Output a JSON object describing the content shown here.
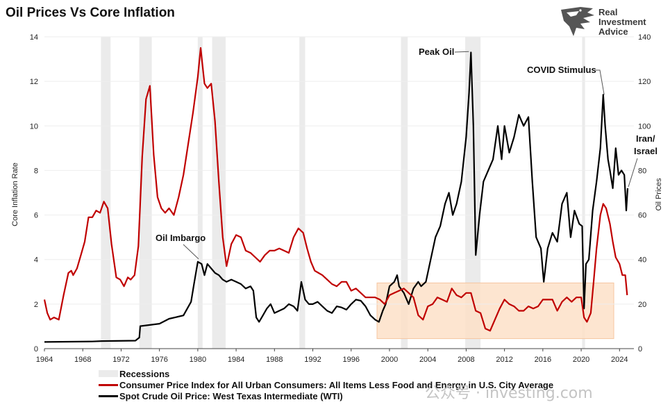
{
  "chart_data": {
    "type": "line",
    "title": "Oil Prices Vs Core Inflation",
    "brand": "Real Investment Advice",
    "watermark": "公众号 · investing.com",
    "ylabel_left": "Core Inflation Rate",
    "ylabel_right": "Oil Prices",
    "xlim": [
      1964,
      2025.5
    ],
    "ylim_left": [
      0,
      14
    ],
    "ylim_right": [
      0,
      140
    ],
    "x_ticks": [
      1964,
      1968,
      1972,
      1976,
      1980,
      1984,
      1988,
      1992,
      1996,
      2000,
      2004,
      2008,
      2012,
      2016,
      2020,
      2024
    ],
    "y_left_ticks": [
      0,
      2,
      4,
      6,
      8,
      10,
      12,
      14
    ],
    "y_right_ticks": [
      0,
      20,
      40,
      60,
      80,
      100,
      120,
      140
    ],
    "recessions": [
      [
        1969.9,
        1970.9
      ],
      [
        1973.9,
        1975.2
      ],
      [
        1980.0,
        1980.5
      ],
      [
        1981.5,
        1982.9
      ],
      [
        1990.6,
        1991.2
      ],
      [
        2001.2,
        2001.9
      ],
      [
        2007.9,
        2009.5
      ],
      [
        2020.1,
        2020.4
      ]
    ],
    "highlight_box": {
      "x0": 1998.7,
      "x1": 2023.4,
      "y0": 0.45,
      "y1": 2.95,
      "axis": "left",
      "color": "#fde0c8"
    },
    "annotations": [
      {
        "text": "Oil Imbargo",
        "x": 1980.3,
        "y": 39,
        "axis": "right"
      },
      {
        "text": "Peak Oil",
        "x": 2008.5,
        "y": 134,
        "axis": "right"
      },
      {
        "text": "COVID Stimulus",
        "x": 2022.4,
        "y": 114,
        "axis": "right"
      },
      {
        "text": "Iran/",
        "x": 2024.8,
        "y": 82,
        "axis": "right"
      },
      {
        "text": "Israel",
        "x": 2024.8,
        "y": 82,
        "axis": "right"
      }
    ],
    "legend": [
      "Recessions",
      "Consumer Price Index for All Urban Consumers: All Items Less Food and Energy in U.S. City Average",
      "Spot Crude Oil Price: West Texas Intermediate (WTI)"
    ],
    "series": [
      {
        "name": "Consumer Price Index for All Urban Consumers: All Items Less Food and Energy in U.S. City Average",
        "axis": "left",
        "color": "#c00000",
        "x": [
          1964.0,
          1964.3,
          1964.6,
          1965.0,
          1965.5,
          1966.0,
          1966.5,
          1966.8,
          1967.0,
          1967.4,
          1967.8,
          1968.2,
          1968.6,
          1969.0,
          1969.4,
          1969.8,
          1970.2,
          1970.6,
          1971.0,
          1971.5,
          1971.9,
          1972.3,
          1972.7,
          1973.0,
          1973.4,
          1973.8,
          1974.2,
          1974.6,
          1975.0,
          1975.4,
          1975.8,
          1976.2,
          1976.6,
          1977.0,
          1977.5,
          1978.0,
          1978.5,
          1979.0,
          1979.5,
          1980.0,
          1980.3,
          1980.7,
          1981.0,
          1981.4,
          1981.8,
          1982.2,
          1982.6,
          1983.0,
          1983.5,
          1984.0,
          1984.5,
          1985.0,
          1985.5,
          1986.0,
          1986.5,
          1987.0,
          1987.5,
          1988.0,
          1988.5,
          1989.0,
          1989.5,
          1990.0,
          1990.5,
          1991.0,
          1991.4,
          1991.8,
          1992.2,
          1992.6,
          1993.0,
          1993.5,
          1994.0,
          1994.5,
          1995.0,
          1995.5,
          1996.0,
          1996.5,
          1997.0,
          1997.5,
          1998.0,
          1998.5,
          1999.0,
          1999.5,
          2000.0,
          2000.5,
          2001.0,
          2001.5,
          2002.0,
          2002.5,
          2003.0,
          2003.5,
          2004.0,
          2004.5,
          2005.0,
          2005.5,
          2006.0,
          2006.5,
          2007.0,
          2007.5,
          2008.0,
          2008.5,
          2009.0,
          2009.5,
          2010.0,
          2010.5,
          2011.0,
          2011.5,
          2012.0,
          2012.5,
          2013.0,
          2013.5,
          2014.0,
          2014.5,
          2015.0,
          2015.5,
          2016.0,
          2016.5,
          2017.0,
          2017.5,
          2018.0,
          2018.5,
          2019.0,
          2019.5,
          2020.0,
          2020.3,
          2020.6,
          2021.0,
          2021.3,
          2021.6,
          2022.0,
          2022.3,
          2022.6,
          2023.0,
          2023.3,
          2023.6,
          2024.0,
          2024.3,
          2024.6,
          2024.8
        ],
        "values": [
          2.2,
          1.6,
          1.3,
          1.4,
          1.3,
          2.4,
          3.4,
          3.5,
          3.3,
          3.6,
          4.2,
          4.8,
          5.9,
          5.9,
          6.2,
          6.1,
          6.6,
          6.3,
          4.7,
          3.2,
          3.1,
          2.8,
          3.2,
          3.1,
          3.3,
          4.6,
          8.6,
          11.2,
          11.8,
          8.7,
          6.8,
          6.3,
          6.1,
          6.3,
          6.0,
          6.8,
          7.8,
          9.2,
          10.6,
          12.2,
          13.5,
          11.9,
          11.7,
          11.9,
          10.2,
          7.5,
          5.0,
          3.7,
          4.7,
          5.1,
          5.0,
          4.4,
          4.3,
          4.1,
          3.9,
          4.2,
          4.4,
          4.4,
          4.5,
          4.4,
          4.3,
          5.0,
          5.4,
          5.2,
          4.5,
          3.9,
          3.5,
          3.4,
          3.3,
          3.1,
          2.9,
          2.8,
          3.0,
          3.0,
          2.6,
          2.7,
          2.5,
          2.3,
          2.3,
          2.3,
          2.2,
          2.0,
          2.4,
          2.5,
          2.6,
          2.7,
          2.5,
          2.3,
          1.5,
          1.3,
          1.9,
          2.0,
          2.3,
          2.2,
          2.1,
          2.7,
          2.4,
          2.3,
          2.5,
          2.5,
          1.7,
          1.6,
          0.9,
          0.8,
          1.3,
          1.8,
          2.2,
          2.0,
          1.9,
          1.7,
          1.7,
          1.9,
          1.8,
          1.9,
          2.2,
          2.2,
          2.2,
          1.7,
          2.1,
          2.3,
          2.1,
          2.3,
          2.3,
          1.4,
          1.2,
          1.6,
          3.0,
          4.5,
          6.0,
          6.5,
          6.3,
          5.6,
          4.8,
          4.1,
          3.8,
          3.3,
          3.3,
          2.4
        ]
      },
      {
        "name": "Spot Crude Oil Price: West Texas Intermediate (WTI)",
        "axis": "right",
        "color": "#000000",
        "x": [
          1964.0,
          1969.0,
          1970.0,
          1973.5,
          1973.9,
          1974.0,
          1976.0,
          1977.0,
          1978.5,
          1979.3,
          1979.6,
          1980.0,
          1980.4,
          1980.7,
          1981.0,
          1981.4,
          1981.8,
          1982.2,
          1982.6,
          1983.0,
          1983.5,
          1984.0,
          1984.5,
          1985.0,
          1985.5,
          1985.8,
          1986.1,
          1986.4,
          1986.8,
          1987.2,
          1987.6,
          1988.0,
          1988.5,
          1989.0,
          1989.5,
          1990.0,
          1990.4,
          1990.8,
          1991.2,
          1991.6,
          1992.0,
          1992.5,
          1993.0,
          1993.5,
          1994.0,
          1994.5,
          1995.0,
          1995.5,
          1996.0,
          1996.5,
          1997.0,
          1997.5,
          1998.0,
          1998.5,
          1998.9,
          1999.3,
          1999.6,
          2000.0,
          2000.5,
          2000.8,
          2001.0,
          2001.5,
          2002.0,
          2002.5,
          2003.0,
          2003.3,
          2003.8,
          2004.3,
          2004.8,
          2005.3,
          2005.8,
          2006.2,
          2006.6,
          2007.0,
          2007.5,
          2008.0,
          2008.3,
          2008.5,
          2008.75,
          2009.0,
          2009.4,
          2009.8,
          2010.3,
          2010.8,
          2011.3,
          2011.7,
          2012.0,
          2012.5,
          2013.0,
          2013.5,
          2014.0,
          2014.5,
          2014.9,
          2015.3,
          2015.8,
          2016.1,
          2016.5,
          2017.0,
          2017.5,
          2018.0,
          2018.5,
          2018.9,
          2019.3,
          2019.8,
          2020.1,
          2020.3,
          2020.5,
          2020.8,
          2021.2,
          2021.6,
          2022.0,
          2022.3,
          2022.5,
          2022.8,
          2023.0,
          2023.3,
          2023.6,
          2023.9,
          2024.2,
          2024.5,
          2024.7,
          2024.85
        ],
        "values": [
          3.0,
          3.2,
          3.4,
          3.6,
          5.0,
          10.1,
          11.2,
          13.4,
          14.9,
          21.0,
          29.0,
          39.0,
          38.0,
          33.0,
          38.0,
          36.0,
          34.0,
          33.0,
          31.0,
          30.0,
          31.0,
          30.0,
          29.0,
          27.0,
          28.0,
          26.0,
          14.0,
          12.0,
          15.0,
          18.0,
          20.0,
          16.0,
          17.0,
          18.0,
          20.0,
          19.0,
          17.0,
          30.0,
          22.0,
          20.0,
          20.0,
          21.0,
          19.0,
          17.0,
          16.0,
          19.0,
          18.5,
          17.5,
          20.0,
          22.0,
          21.5,
          19.0,
          15.0,
          13.0,
          12.0,
          17.0,
          20.0,
          28.0,
          30.0,
          33.0,
          28.0,
          25.0,
          20.0,
          27.0,
          30.0,
          28.0,
          30.0,
          40.0,
          50.0,
          55.0,
          65.0,
          70.0,
          60.0,
          65.0,
          75.0,
          95.0,
          115.0,
          133.0,
          100.0,
          42.0,
          60.0,
          75.0,
          80.0,
          85.0,
          100.0,
          85.0,
          100.0,
          88.0,
          95.0,
          105.0,
          100.0,
          104.0,
          75.0,
          50.0,
          45.0,
          30.0,
          45.0,
          52.0,
          48.0,
          65.0,
          70.0,
          50.0,
          62.0,
          56.0,
          55.0,
          18.0,
          38.0,
          40.0,
          62.0,
          75.0,
          90.0,
          114.0,
          100.0,
          85.0,
          80.0,
          72.0,
          90.0,
          78.0,
          80.0,
          78.0,
          62.0,
          72.0
        ]
      }
    ]
  }
}
